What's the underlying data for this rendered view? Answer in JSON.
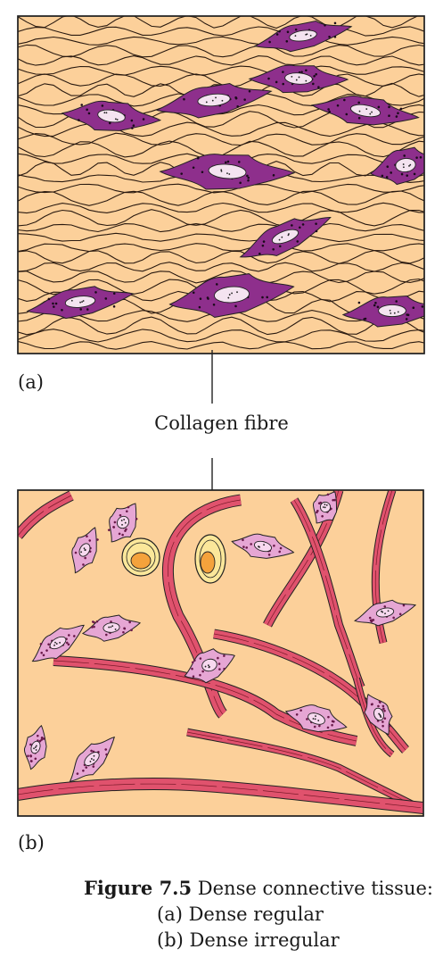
{
  "panels": {
    "a": {
      "label": "(a)"
    },
    "b": {
      "label": "(b)"
    }
  },
  "callout": {
    "text": "Collagen fibre"
  },
  "caption": {
    "figure_number": "Figure 7.5",
    "title": "Dense connective tissue:",
    "line_a": "(a) Dense regular",
    "line_b": "(b) Dense irregular"
  },
  "colors": {
    "matrix": "#fcd09a",
    "fibroblast_a": "#8e2f8c",
    "fibre_b": "#e0526d",
    "fibroblast_b": "#e6a6d4",
    "fat_cell": "#fbe79a",
    "fat_nucleus": "#f4a23c"
  }
}
